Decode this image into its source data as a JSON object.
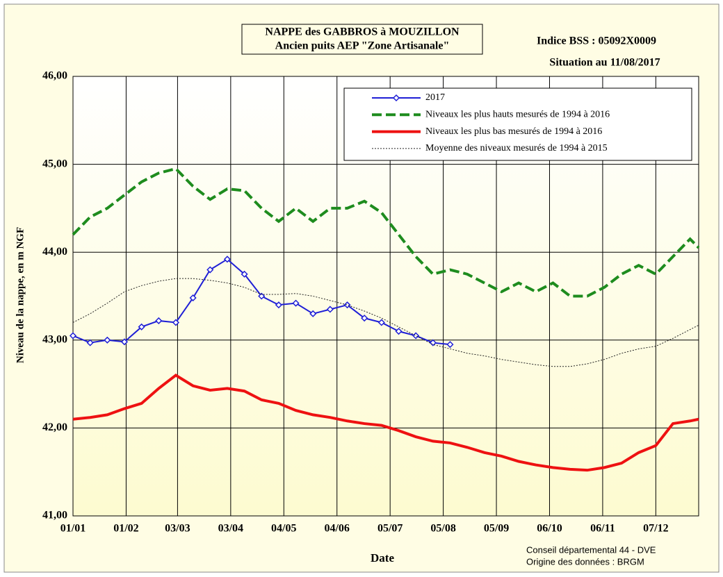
{
  "chart_data": {
    "type": "line",
    "title": [
      "NAPPE des GABBROS à MOUZILLON",
      "Ancien puits AEP \"Zone Artisanale\""
    ],
    "annotations": [
      "Indice BSS : 05092X0009",
      "Situation au 11/08/2017"
    ],
    "footer": [
      "Conseil départemental 44 - DVE",
      "Origine des données : BRGM"
    ],
    "xlabel": "Date",
    "ylabel": "Niveau de la nappe, en m NGF",
    "xlim": [
      0,
      365
    ],
    "ylim": [
      41,
      46
    ],
    "grid": true,
    "legend": "upper right",
    "xticks": [
      {
        "value": 0,
        "label": "01/01"
      },
      {
        "value": 31,
        "label": "01/02"
      },
      {
        "value": 61,
        "label": "03/03"
      },
      {
        "value": 92,
        "label": "03/04"
      },
      {
        "value": 123,
        "label": "04/05"
      },
      {
        "value": 154,
        "label": "04/06"
      },
      {
        "value": 185,
        "label": "05/07"
      },
      {
        "value": 216,
        "label": "05/08"
      },
      {
        "value": 247,
        "label": "05/09"
      },
      {
        "value": 278,
        "label": "06/10"
      },
      {
        "value": 309,
        "label": "06/11"
      },
      {
        "value": 340,
        "label": "07/12"
      }
    ],
    "yticks": [
      {
        "value": 41,
        "label": "41,00"
      },
      {
        "value": 42,
        "label": "42,00"
      },
      {
        "value": 43,
        "label": "43,00"
      },
      {
        "value": 44,
        "label": "44,00"
      },
      {
        "value": 45,
        "label": "45,00"
      },
      {
        "value": 46,
        "label": "46,00"
      }
    ],
    "x": [
      0,
      10,
      20,
      30,
      40,
      50,
      60,
      70,
      80,
      90,
      100,
      110,
      120,
      130,
      140,
      150,
      160,
      170,
      180,
      190,
      200,
      210,
      220,
      230,
      240,
      250,
      260,
      270,
      280,
      290,
      300,
      310,
      320,
      330,
      340,
      350,
      360,
      365
    ],
    "series": [
      {
        "name": "2017",
        "color": "#1f1fd6",
        "style": "solid",
        "marker": "diamond",
        "values": [
          43.05,
          42.97,
          43.0,
          42.98,
          43.15,
          43.22,
          43.2,
          43.48,
          43.8,
          43.92,
          43.75,
          43.5,
          43.4,
          43.42,
          43.3,
          43.35,
          43.4,
          43.25,
          43.2,
          43.1,
          43.05,
          42.97,
          42.95,
          null,
          null,
          null,
          null,
          null,
          null,
          null,
          null,
          null,
          null,
          null,
          null,
          null,
          null,
          null
        ]
      },
      {
        "name": "Niveaux les plus hauts mesurés de 1994 à 2016",
        "color": "#1e8c1e",
        "style": "dashed",
        "values": [
          44.2,
          44.4,
          44.5,
          44.65,
          44.8,
          44.9,
          44.95,
          44.75,
          44.6,
          44.72,
          44.7,
          44.5,
          44.35,
          44.5,
          44.35,
          44.5,
          44.5,
          44.58,
          44.45,
          44.2,
          43.95,
          43.75,
          43.8,
          43.75,
          43.65,
          43.55,
          43.65,
          43.55,
          43.65,
          43.5,
          43.5,
          43.6,
          43.75,
          43.85,
          43.75,
          43.95,
          44.15,
          44.05
        ]
      },
      {
        "name": "Niveaux les plus bas mesurés de 1994 à 2016",
        "color": "#ee1111",
        "style": "solid",
        "values": [
          42.1,
          42.12,
          42.15,
          42.22,
          42.28,
          42.45,
          42.6,
          42.48,
          42.43,
          42.45,
          42.42,
          42.32,
          42.28,
          42.2,
          42.15,
          42.12,
          42.08,
          42.05,
          42.03,
          41.97,
          41.9,
          41.85,
          41.83,
          41.78,
          41.72,
          41.68,
          41.62,
          41.58,
          41.55,
          41.53,
          41.52,
          41.55,
          41.6,
          41.72,
          41.8,
          42.05,
          42.08,
          42.1
        ]
      },
      {
        "name": "Moyenne des niveaux mesurés de 1994 à 2015",
        "color": "#222222",
        "style": "dotted",
        "values": [
          43.2,
          43.3,
          43.42,
          43.55,
          43.62,
          43.67,
          43.7,
          43.7,
          43.68,
          43.65,
          43.6,
          43.52,
          43.52,
          43.53,
          43.5,
          43.45,
          43.4,
          43.33,
          43.25,
          43.15,
          43.05,
          42.95,
          42.9,
          42.85,
          42.82,
          42.78,
          42.75,
          42.72,
          42.7,
          42.7,
          42.73,
          42.78,
          42.85,
          42.9,
          42.93,
          43.02,
          43.12,
          43.17
        ]
      }
    ]
  }
}
